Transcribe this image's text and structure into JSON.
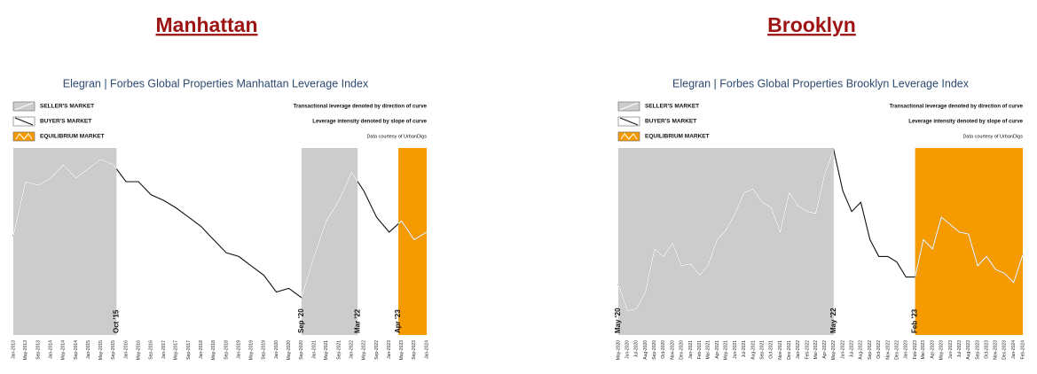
{
  "chart_data": [
    {
      "type": "line",
      "heading": "Manhattan",
      "title": "Elegran | Forbes Global Properties Manhattan Leverage Index",
      "notes": [
        "Transactional leverage denoted by direction of curve",
        "Leverage intensity denoted by slope of curve",
        "Data courtesy of UrbanDigs"
      ],
      "legend": [
        {
          "name": "SELLER'S MARKET",
          "kind": "seller",
          "color": "#cccccc"
        },
        {
          "name": "BUYER'S MARKET",
          "kind": "buyer",
          "color": "#ffffff"
        },
        {
          "name": "EQUILIBRIUM MARKET",
          "kind": "equilibrium",
          "color": "#f59b00"
        }
      ],
      "categories": [
        "Jan-2013",
        "May-2013",
        "Sep-2013",
        "Jan-2014",
        "May-2014",
        "Sep-2014",
        "Jan-2015",
        "May-2015",
        "Sep-2015",
        "Jan-2016",
        "May-2016",
        "Sep-2016",
        "Jan-2017",
        "May-2017",
        "Sep-2017",
        "Jan-2018",
        "May-2018",
        "Sep-2018",
        "Jan-2019",
        "May-2019",
        "Sep-2019",
        "Jan-2020",
        "May-2020",
        "Sep-2020",
        "Jan-2021",
        "May-2021",
        "Sep-2021",
        "Jan-2022",
        "May-2022",
        "Sep-2022",
        "Jan-2023",
        "May-2023",
        "Sep-2023",
        "Jan-2024"
      ],
      "values": [
        53,
        82,
        80,
        84,
        91,
        84,
        89,
        94,
        91,
        82,
        82,
        75,
        72,
        68,
        63,
        58,
        51,
        44,
        42,
        37,
        32,
        23,
        25,
        20,
        42,
        61,
        72,
        87,
        77,
        63,
        55,
        61,
        51,
        55
      ],
      "ylim": [
        0,
        100
      ],
      "line_color": "#111111",
      "line_color_in_region": "#ffffff",
      "markers": [
        "Oct '15",
        "Sep '20",
        "Mar '22",
        "Apr '23"
      ],
      "regions": [
        {
          "from": "Jan-2013",
          "to": "Oct '15",
          "color": "#cccccc"
        },
        {
          "from": "Sep '20",
          "to": "Mar '22",
          "color": "#cccccc"
        },
        {
          "from": "Apr '23",
          "to": "Jan-2024",
          "color": "#f59b00"
        }
      ]
    },
    {
      "type": "line",
      "heading": "Brooklyn",
      "title": "Elegran | Forbes Global Properties Brooklyn Leverage Index",
      "notes": [
        "Transactional leverage denoted by direction of curve",
        "Leverage intensity denoted by slope of curve",
        "Data courtesy of UrbanDigs"
      ],
      "legend": [
        {
          "name": "SELLER'S MARKET",
          "kind": "seller",
          "color": "#cccccc"
        },
        {
          "name": "BUYER'S MARKET",
          "kind": "buyer",
          "color": "#ffffff"
        },
        {
          "name": "EQUILIBRIUM MARKET",
          "kind": "equilibrium",
          "color": "#f59b00"
        }
      ],
      "categories": [
        "May-2020",
        "Jun-2020",
        "Jul-2020",
        "Aug-2020",
        "Sep-2020",
        "Oct-2020",
        "Nov-2020",
        "Dec-2020",
        "Jan-2021",
        "Feb-2021",
        "Mar-2021",
        "Apr-2021",
        "May-2021",
        "Jun-2021",
        "Jul-2021",
        "Aug-2021",
        "Sep-2021",
        "Oct-2021",
        "Nov-2021",
        "Dec-2021",
        "Jan-2022",
        "Feb-2022",
        "Mar-2022",
        "Apr-2022",
        "May-2022",
        "Jun-2022",
        "Jul-2022",
        "Aug-2022",
        "Sep-2022",
        "Oct-2022",
        "Nov-2022",
        "Dec-2022",
        "Jan-2023",
        "Feb-2023",
        "Mar-2023",
        "Apr-2023",
        "May-2023",
        "Jun-2023",
        "Jul-2023",
        "Aug-2023",
        "Sep-2023",
        "Oct-2023",
        "Nov-2023",
        "Dec-2023",
        "Jan-2024",
        "Feb-2024"
      ],
      "values": [
        27,
        13,
        14,
        23,
        46,
        42,
        49,
        37,
        38,
        32,
        37,
        51,
        56,
        65,
        76,
        78,
        71,
        68,
        55,
        76,
        69,
        66,
        65,
        86,
        99,
        77,
        66,
        71,
        51,
        42,
        42,
        39,
        31,
        31,
        51,
        46,
        63,
        59,
        55,
        54,
        37,
        42,
        35,
        33,
        28,
        43
      ],
      "ylim": [
        0,
        100
      ],
      "line_color": "#111111",
      "line_color_in_region": "#ffffff",
      "markers": [
        "May '20",
        "May '22",
        "Feb '23"
      ],
      "regions": [
        {
          "from": "May '20",
          "to": "May '22",
          "color": "#cccccc"
        },
        {
          "from": "Feb '23",
          "to": "Feb-2024",
          "color": "#f59b00"
        }
      ]
    }
  ]
}
